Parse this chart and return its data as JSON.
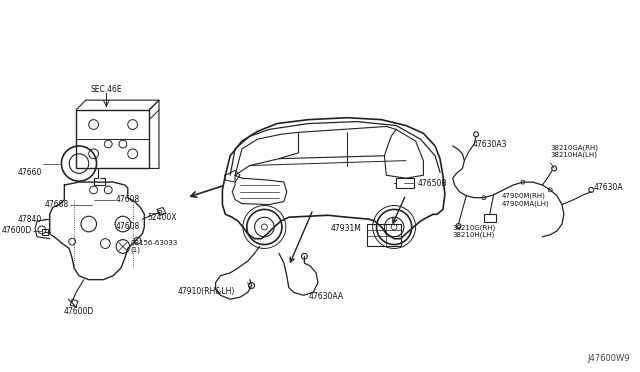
{
  "bg_color": "#ffffff",
  "line_color": "#222222",
  "text_color": "#111111",
  "fig_width": 6.4,
  "fig_height": 3.72,
  "dpi": 100,
  "watermark": "J47600W9",
  "sec46e": "SEC.46E",
  "labels": {
    "47660": [
      29,
      178,
      "47660"
    ],
    "47608a": [
      56,
      210,
      "47608"
    ],
    "47608b": [
      103,
      210,
      "47608"
    ],
    "47840": [
      28,
      220,
      "47840"
    ],
    "47600D_top": [
      17,
      230,
      "47600D"
    ],
    "52400x": [
      116,
      218,
      "52400X"
    ],
    "47608c": [
      98,
      226,
      "47608"
    ],
    "bolt": [
      112,
      248,
      "08156-63033\n(1)"
    ],
    "47600D_bot": [
      66,
      295,
      "47600D"
    ],
    "47650B": [
      385,
      185,
      "47650B"
    ],
    "47931M": [
      356,
      215,
      "47931M"
    ],
    "47910": [
      196,
      285,
      "47910(RH&LH)"
    ],
    "47630AA": [
      295,
      280,
      "47630AA"
    ],
    "47630A3": [
      468,
      148,
      "47630A3"
    ],
    "47630A": [
      590,
      175,
      "47630A"
    ],
    "38210GA_RH": [
      550,
      145,
      "38210GA(RH)"
    ],
    "38210HA_LH": [
      550,
      153,
      "38210HA(LH)"
    ],
    "47900M_RH": [
      540,
      195,
      "47900M(RH)"
    ],
    "47900MA_LH": [
      540,
      203,
      "47900MA(LH)"
    ],
    "38210G_RH": [
      458,
      228,
      "38210G(RH)"
    ],
    "38210H_LH": [
      458,
      236,
      "38210H(LH)"
    ]
  }
}
